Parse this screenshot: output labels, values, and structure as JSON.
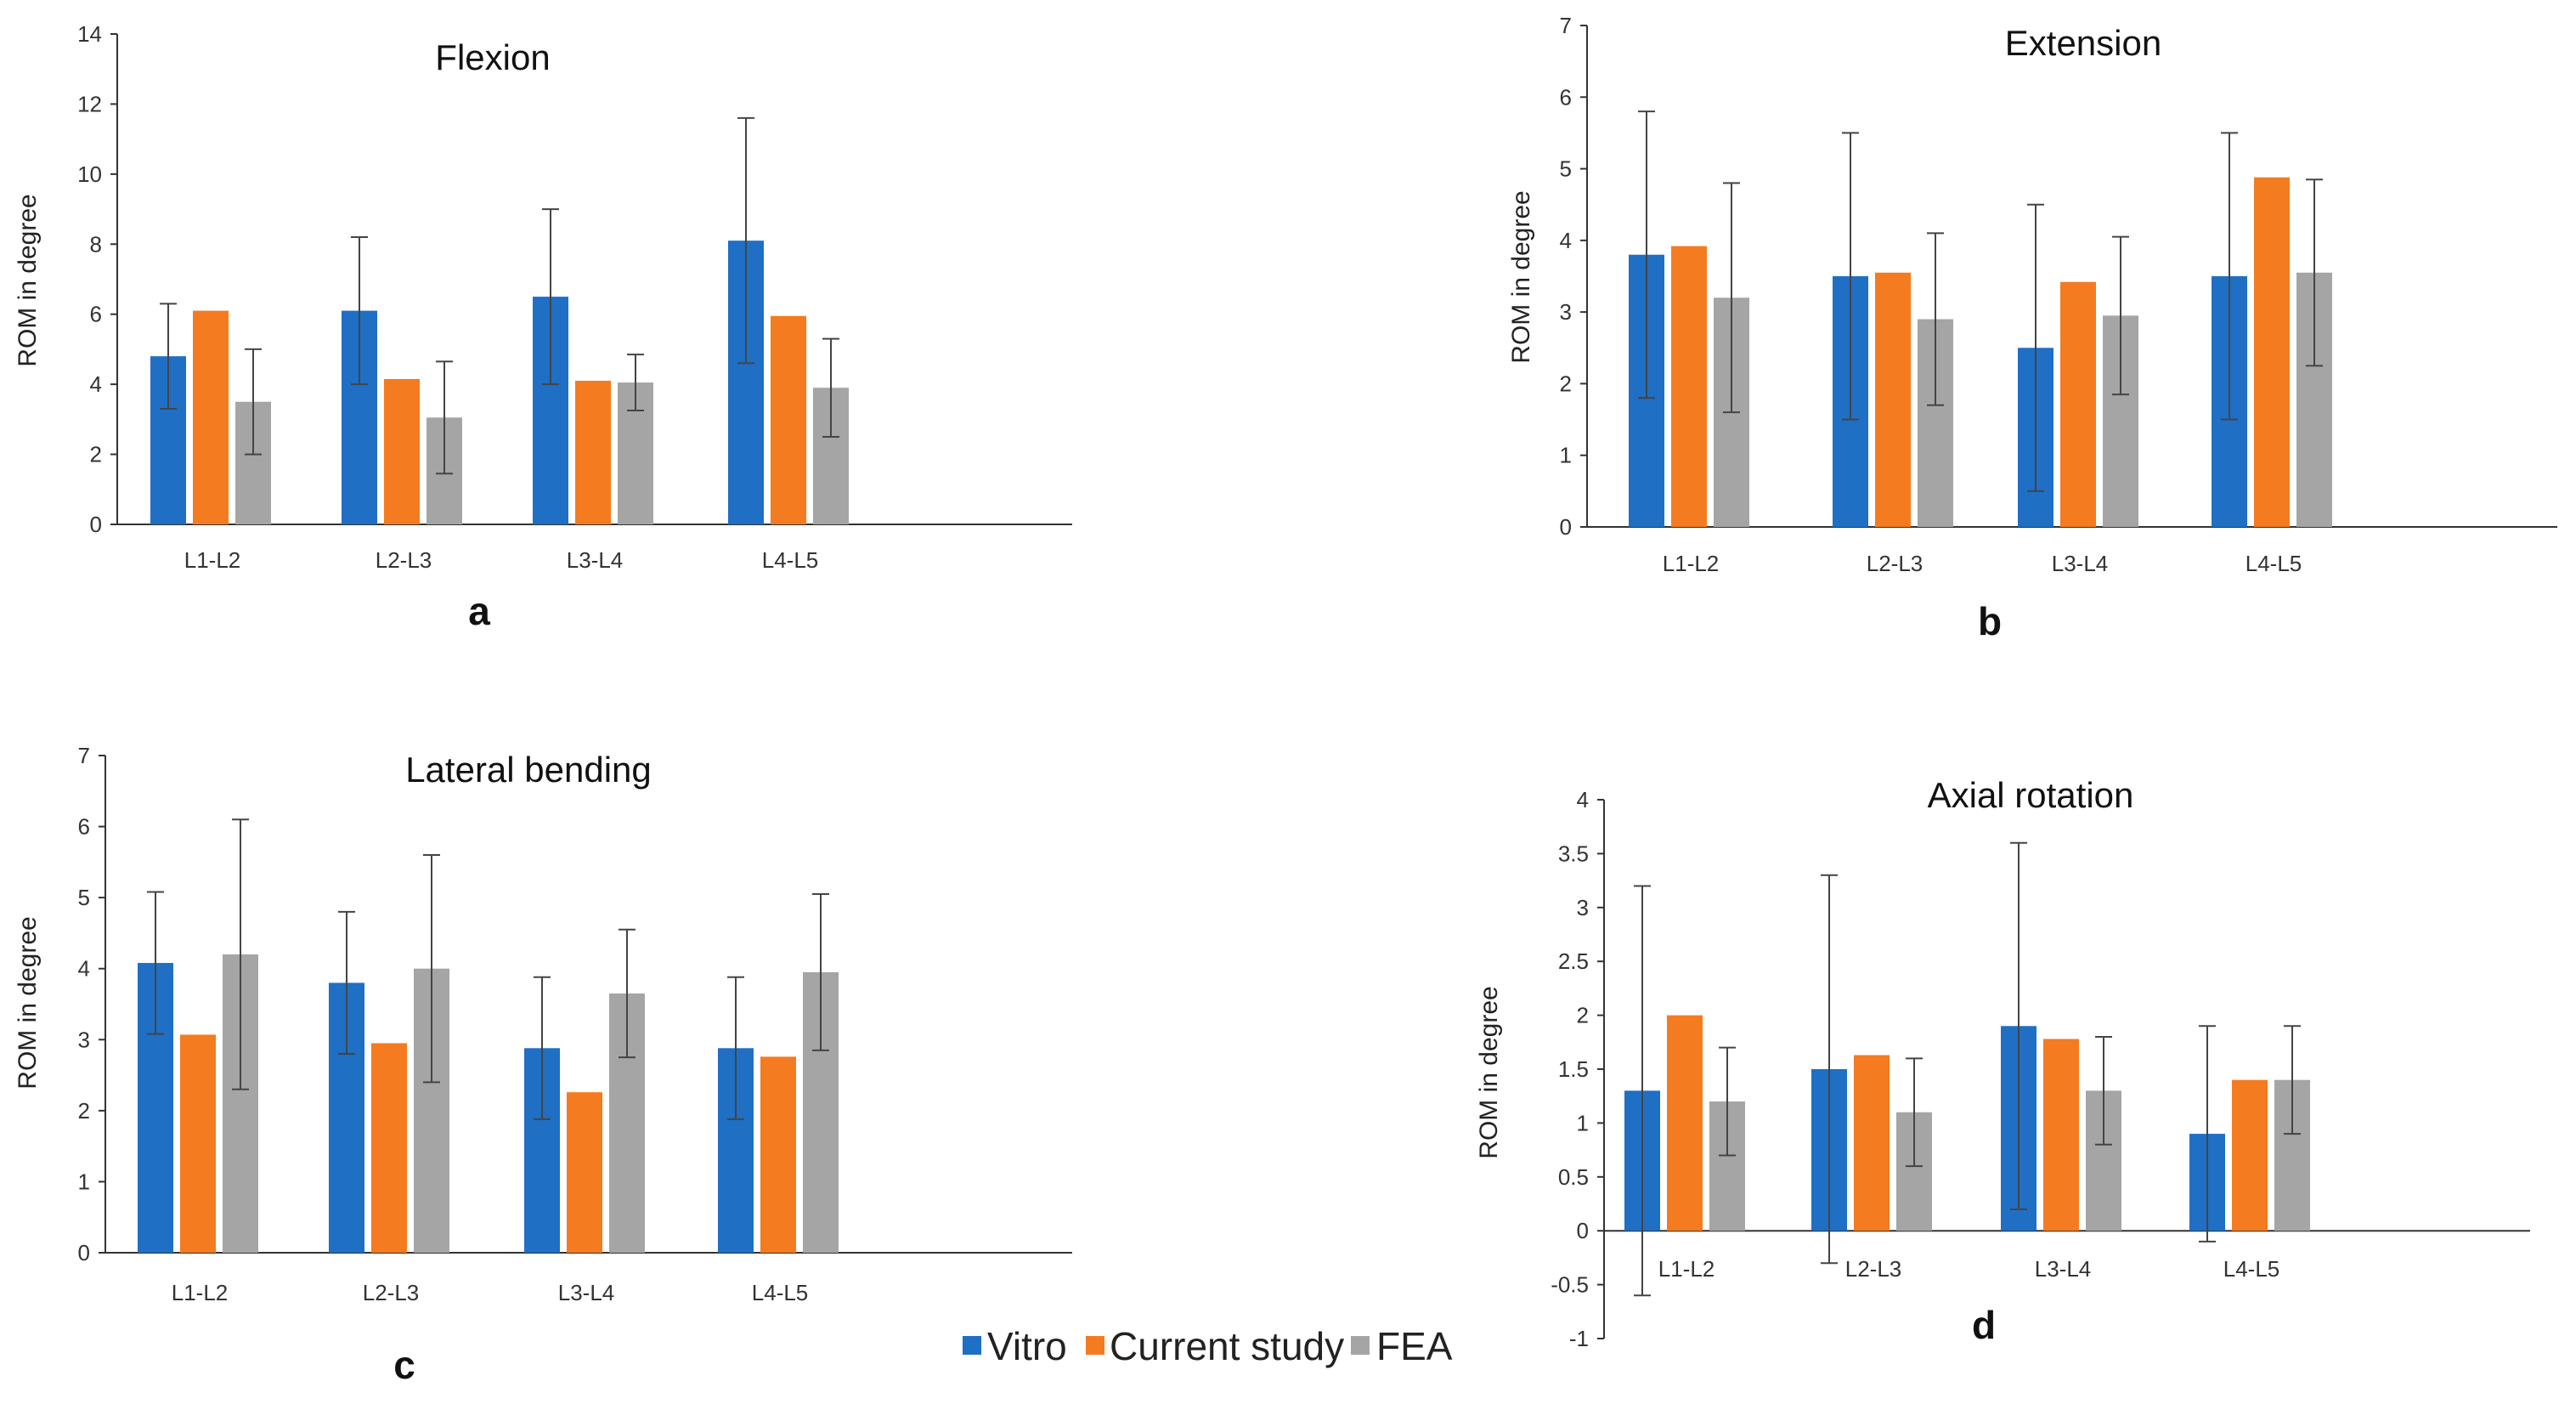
{
  "legend": [
    {
      "name": "Vitro",
      "color": "#1f6fc5"
    },
    {
      "name": "Current study",
      "color": "#f47b20"
    },
    {
      "name": "FEA",
      "color": "#a5a5a5"
    }
  ],
  "chart_data": [
    {
      "type": "bar",
      "panel": "a",
      "title": "Flexion",
      "ylabel": "ROM in degree",
      "xlabel": "",
      "ylim": [
        0,
        14
      ],
      "yticks": [
        0,
        2,
        4,
        6,
        8,
        10,
        12,
        14
      ],
      "ytick_labels": [
        "0",
        "2",
        "4",
        "6",
        "8",
        "10",
        "12",
        "14"
      ],
      "categories": [
        "L1-L2",
        "L2-L3",
        "L3-L4",
        "L4-L5"
      ],
      "series": [
        {
          "name": "Vitro",
          "values": [
            4.8,
            6.1,
            6.5,
            8.1
          ],
          "error": [
            1.5,
            2.1,
            2.5,
            3.5
          ]
        },
        {
          "name": "Current study",
          "values": [
            6.1,
            4.15,
            4.1,
            5.95
          ],
          "error": null
        },
        {
          "name": "FEA",
          "values": [
            3.5,
            3.05,
            4.05,
            3.9
          ],
          "error": [
            1.5,
            1.6,
            0.8,
            1.4
          ]
        }
      ]
    },
    {
      "type": "bar",
      "panel": "b",
      "title": "Extension",
      "ylabel": "ROM in degree",
      "xlabel": "",
      "ylim": [
        0,
        7
      ],
      "yticks": [
        0,
        1,
        2,
        3,
        4,
        5,
        6,
        7
      ],
      "ytick_labels": [
        "0",
        "1",
        "2",
        "3",
        "4",
        "5",
        "6",
        "7"
      ],
      "categories": [
        "L1-L2",
        "L2-L3",
        "L3-L4",
        "L4-L5"
      ],
      "series": [
        {
          "name": "Vitro",
          "values": [
            3.8,
            3.5,
            2.5,
            3.5
          ],
          "error": [
            2.0,
            2.0,
            2.0,
            2.0
          ]
        },
        {
          "name": "Current study",
          "values": [
            3.92,
            3.55,
            3.42,
            4.88
          ],
          "error": null
        },
        {
          "name": "FEA",
          "values": [
            3.2,
            2.9,
            2.95,
            3.55
          ],
          "error": [
            1.6,
            1.2,
            1.1,
            1.3
          ]
        }
      ]
    },
    {
      "type": "bar",
      "panel": "c",
      "title": "Lateral bending",
      "ylabel": "ROM in degree",
      "xlabel": "",
      "ylim": [
        0,
        7
      ],
      "yticks": [
        0,
        1,
        2,
        3,
        4,
        5,
        6,
        7
      ],
      "ytick_labels": [
        "0",
        "1",
        "2",
        "3",
        "4",
        "5",
        "6",
        "7"
      ],
      "categories": [
        "L1-L2",
        "L2-L3",
        "L3-L4",
        "L4-L5"
      ],
      "series": [
        {
          "name": "Vitro",
          "values": [
            4.08,
            3.8,
            2.88,
            2.88
          ],
          "error": [
            1.0,
            1.0,
            1.0,
            1.0
          ]
        },
        {
          "name": "Current study",
          "values": [
            3.07,
            2.95,
            2.26,
            2.76
          ],
          "error": null
        },
        {
          "name": "FEA",
          "values": [
            4.2,
            4.0,
            3.65,
            3.95
          ],
          "error": [
            1.9,
            1.6,
            0.9,
            1.1
          ]
        }
      ]
    },
    {
      "type": "bar",
      "panel": "d",
      "title": "Axial rotation",
      "ylabel": "ROM in degree",
      "xlabel": "",
      "ylim": [
        -1,
        4
      ],
      "yticks": [
        -1,
        -0.5,
        0,
        0.5,
        1,
        1.5,
        2,
        2.5,
        3,
        3.5,
        4
      ],
      "ytick_labels": [
        "-1",
        "-0.5",
        "0",
        "0.5",
        "1",
        "1.5",
        "2",
        "2.5",
        "3",
        "3.5",
        "4"
      ],
      "categories": [
        "L1-L2",
        "L2-L3",
        "L3-L4",
        "L4-L5"
      ],
      "series": [
        {
          "name": "Vitro",
          "values": [
            1.3,
            1.5,
            1.9,
            0.9
          ],
          "error": [
            1.9,
            1.8,
            1.7,
            1.0
          ]
        },
        {
          "name": "Current study",
          "values": [
            2.0,
            1.63,
            1.78,
            1.4
          ],
          "error": null
        },
        {
          "name": "FEA",
          "values": [
            1.2,
            1.1,
            1.3,
            1.4
          ],
          "error": [
            0.5,
            0.5,
            0.5,
            0.5
          ]
        }
      ]
    }
  ]
}
